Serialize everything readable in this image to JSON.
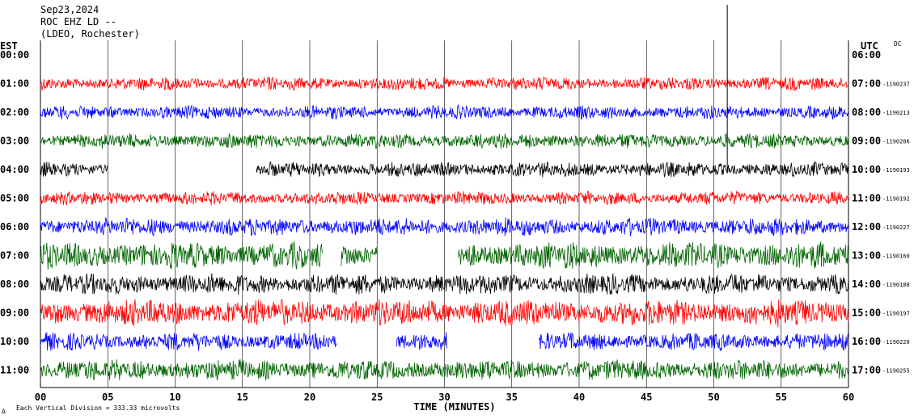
{
  "header": {
    "date": "Sep23,2024",
    "station": "ROC EHZ LD --",
    "network": "(LDEO, Rochester)"
  },
  "left_axis_title": "EST",
  "right_axis_title": "UTC",
  "dc_label": "DC",
  "footer": {
    "scale_note": "Each Vertical Division =  333.33 microvolts",
    "logo_glyph": "∆"
  },
  "colors": {
    "red": "#ff0000",
    "blue": "#0000ff",
    "green": "#006400",
    "black": "#000000",
    "grid": "#000000"
  },
  "chart_data": {
    "type": "line",
    "title": "",
    "xlabel": "TIME (MINUTES)",
    "ylabel": "",
    "xlim": [
      0,
      60
    ],
    "x_ticks": [
      "00",
      "05",
      "10",
      "15",
      "20",
      "25",
      "30",
      "35",
      "40",
      "45",
      "50",
      "55",
      "60"
    ],
    "grid": "vertical every 5 minutes",
    "rows": [
      {
        "est": "00:00",
        "utc": "06:00",
        "dc": "",
        "color": "red",
        "amplitude": 0,
        "gaps": []
      },
      {
        "est": "01:00",
        "utc": "07:00",
        "dc": "1190237",
        "color": "red",
        "amplitude": 9,
        "gaps": []
      },
      {
        "est": "02:00",
        "utc": "08:00",
        "dc": "1190213",
        "color": "blue",
        "amplitude": 9,
        "gaps": []
      },
      {
        "est": "03:00",
        "utc": "09:00",
        "dc": "1190206",
        "color": "green",
        "amplitude": 10,
        "gaps": []
      },
      {
        "est": "04:00",
        "utc": "10:00",
        "dc": "1190193",
        "color": "black",
        "amplitude": 10,
        "gaps": [
          [
            5,
            16
          ]
        ]
      },
      {
        "est": "05:00",
        "utc": "11:00",
        "dc": "1190192",
        "color": "red",
        "amplitude": 9,
        "gaps": []
      },
      {
        "est": "06:00",
        "utc": "12:00",
        "dc": "1190227",
        "color": "blue",
        "amplitude": 12,
        "gaps": []
      },
      {
        "est": "07:00",
        "utc": "13:00",
        "dc": "1190160",
        "color": "green",
        "amplitude": 18,
        "gaps": [
          [
            21,
            22.3
          ],
          [
            25,
            31
          ]
        ]
      },
      {
        "est": "08:00",
        "utc": "14:00",
        "dc": "1190188",
        "color": "black",
        "amplitude": 14,
        "gaps": []
      },
      {
        "est": "09:00",
        "utc": "15:00",
        "dc": "1190197",
        "color": "red",
        "amplitude": 18,
        "gaps": []
      },
      {
        "est": "10:00",
        "utc": "16:00",
        "dc": "1190220",
        "color": "blue",
        "amplitude": 12,
        "gaps": [
          [
            22,
            26.4
          ],
          [
            30.2,
            37
          ]
        ]
      },
      {
        "est": "11:00",
        "utc": "17:00",
        "dc": "1190255",
        "color": "green",
        "amplitude": 14,
        "gaps": []
      }
    ],
    "annotations": [
      {
        "type": "spike",
        "minute": 51,
        "row_est": "03:00",
        "note": "large vertical spike extending above plot"
      }
    ]
  }
}
